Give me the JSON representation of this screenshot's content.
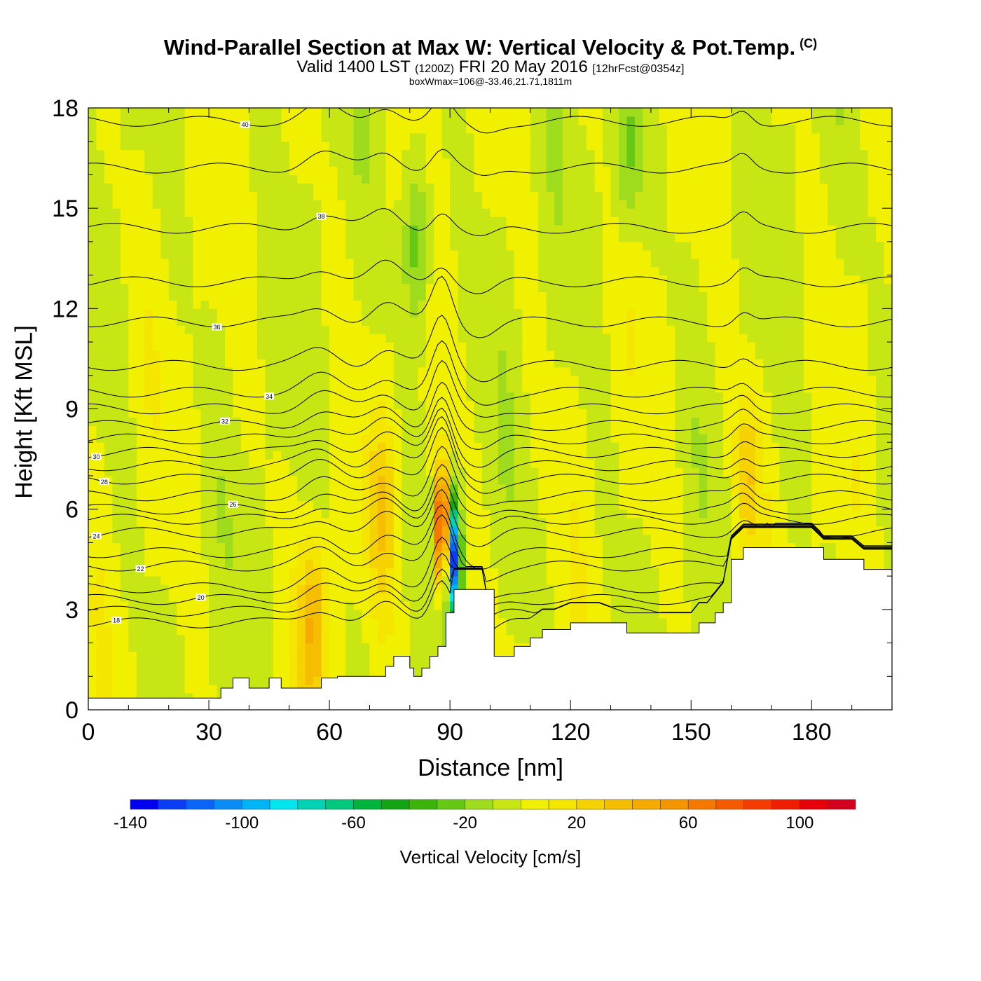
{
  "chart_data": {
    "type": "heatmap",
    "title": "Wind-Parallel Section at Max W: Vertical Velocity & Pot.Temp.",
    "copyright_mark": "(C)",
    "subtitle_main": "Valid 1400 LST",
    "subtitle_utc": "(1200Z)",
    "subtitle_date": "FRI 20 May 2016",
    "subtitle_run": "[12hrFcst@0354z]",
    "info_line": "boxWmax=106@-33.46,21.71,1811m",
    "xlabel": "Distance [nm]",
    "ylabel": "Height [Kft MSL]",
    "xlim": [
      0,
      200
    ],
    "ylim": [
      0,
      18
    ],
    "x_ticks": [
      "0",
      "30",
      "60",
      "90",
      "120",
      "150",
      "180"
    ],
    "y_ticks": [
      "0",
      "3",
      "6",
      "9",
      "12",
      "15",
      "18"
    ],
    "colorbar": {
      "label": "Vertical Velocity [cm/s]",
      "range": [
        -140,
        120
      ],
      "step": 10,
      "tick_labels": [
        "-140",
        "-100",
        "-60",
        "-20",
        "20",
        "60",
        "100"
      ],
      "colors": [
        "#0000f0",
        "#0a3cf5",
        "#0a64f5",
        "#0a8cf5",
        "#00b4f5",
        "#00e6f0",
        "#00d2b4",
        "#00c87d",
        "#00b43c",
        "#14a514",
        "#3cb40a",
        "#64c814",
        "#a0dc1e",
        "#c8e614",
        "#f0f000",
        "#f5e600",
        "#f5d200",
        "#f5be00",
        "#f5aa00",
        "#f59600",
        "#f57800",
        "#f55a00",
        "#f53c00",
        "#f01e00",
        "#e6000a",
        "#d2001e"
      ]
    },
    "terrain_profile": {
      "x": [
        0,
        10,
        20,
        30,
        33,
        36,
        40,
        45,
        48,
        54,
        57,
        58,
        62,
        66,
        70,
        74,
        76,
        80,
        81,
        83,
        85,
        87,
        89,
        90,
        91,
        92,
        98,
        101,
        103,
        106,
        110,
        113,
        116,
        120,
        127,
        134,
        141,
        144,
        150,
        152,
        154,
        156,
        158,
        160,
        163,
        180,
        183,
        190,
        193,
        200
      ],
      "height_kft": [
        0.35,
        0.35,
        0.35,
        0.35,
        0.65,
        0.95,
        0.65,
        0.95,
        0.65,
        0.65,
        0.65,
        0.95,
        1.0,
        1.0,
        1.0,
        1.3,
        1.6,
        1.25,
        1.0,
        1.25,
        1.6,
        1.9,
        2.9,
        2.9,
        3.6,
        3.6,
        3.6,
        1.6,
        1.6,
        1.9,
        2.15,
        2.4,
        2.4,
        2.6,
        2.6,
        2.3,
        2.3,
        2.3,
        2.3,
        2.6,
        2.6,
        2.9,
        3.2,
        4.5,
        4.85,
        4.85,
        4.5,
        4.5,
        4.2,
        4.2
      ]
    },
    "w_features": [
      {
        "x": 88,
        "height_kft": 5.5,
        "w": 106
      },
      {
        "x": 91,
        "height_kft": 4.5,
        "w": -120
      },
      {
        "x": 82,
        "height_kft": 14,
        "w": -30
      },
      {
        "x": 56,
        "height_kft": 2.6,
        "w": 40
      },
      {
        "x": 73,
        "height_kft": 6,
        "w": 25
      },
      {
        "x": 164,
        "height_kft": 7,
        "w": 30
      },
      {
        "x": 134,
        "height_kft": 16.5,
        "w": -25
      }
    ],
    "theta_contours": [
      {
        "value": 18,
        "label": "18",
        "label_x": 7,
        "base_kft": 2.6
      },
      {
        "value": 19,
        "label": "",
        "label_x": 0,
        "base_kft": 2.95
      },
      {
        "value": 20,
        "label": "20",
        "label_x": 28,
        "base_kft": 3.3
      },
      {
        "value": 21,
        "label": "",
        "label_x": 0,
        "base_kft": 3.65
      },
      {
        "value": 22,
        "label": "22",
        "label_x": 13,
        "base_kft": 4.3
      },
      {
        "value": 23,
        "label": "",
        "label_x": 0,
        "base_kft": 4.7
      },
      {
        "value": 24,
        "label": "24",
        "label_x": 2,
        "base_kft": 5.3
      },
      {
        "value": 25,
        "label": "",
        "label_x": 0,
        "base_kft": 5.7
      },
      {
        "value": 26,
        "label": "26",
        "label_x": 36,
        "base_kft": 6.0
      },
      {
        "value": 27,
        "label": "",
        "label_x": 0,
        "base_kft": 6.4
      },
      {
        "value": 28,
        "label": "28",
        "label_x": 4,
        "base_kft": 6.9
      },
      {
        "value": 29,
        "label": "",
        "label_x": 0,
        "base_kft": 7.3
      },
      {
        "value": 30,
        "label": "30",
        "label_x": 2,
        "base_kft": 7.7
      },
      {
        "value": 31,
        "label": "",
        "label_x": 0,
        "base_kft": 8.1
      },
      {
        "value": 32,
        "label": "32",
        "label_x": 34,
        "base_kft": 8.5
      },
      {
        "value": 33,
        "label": "",
        "label_x": 0,
        "base_kft": 9.0
      },
      {
        "value": 34,
        "label": "34",
        "label_x": 45,
        "base_kft": 9.5
      },
      {
        "value": 35,
        "label": "",
        "label_x": 0,
        "base_kft": 10.3
      },
      {
        "value": 36,
        "label": "36",
        "label_x": 32,
        "base_kft": 11.6
      },
      {
        "value": 37,
        "label": "",
        "label_x": 0,
        "base_kft": 12.8
      },
      {
        "value": 38,
        "label": "38",
        "label_x": 58,
        "base_kft": 14.4
      },
      {
        "value": 39,
        "label": "",
        "label_x": 0,
        "base_kft": 16.2
      },
      {
        "value": 40,
        "label": "40",
        "label_x": 39,
        "base_kft": 17.6
      }
    ]
  }
}
